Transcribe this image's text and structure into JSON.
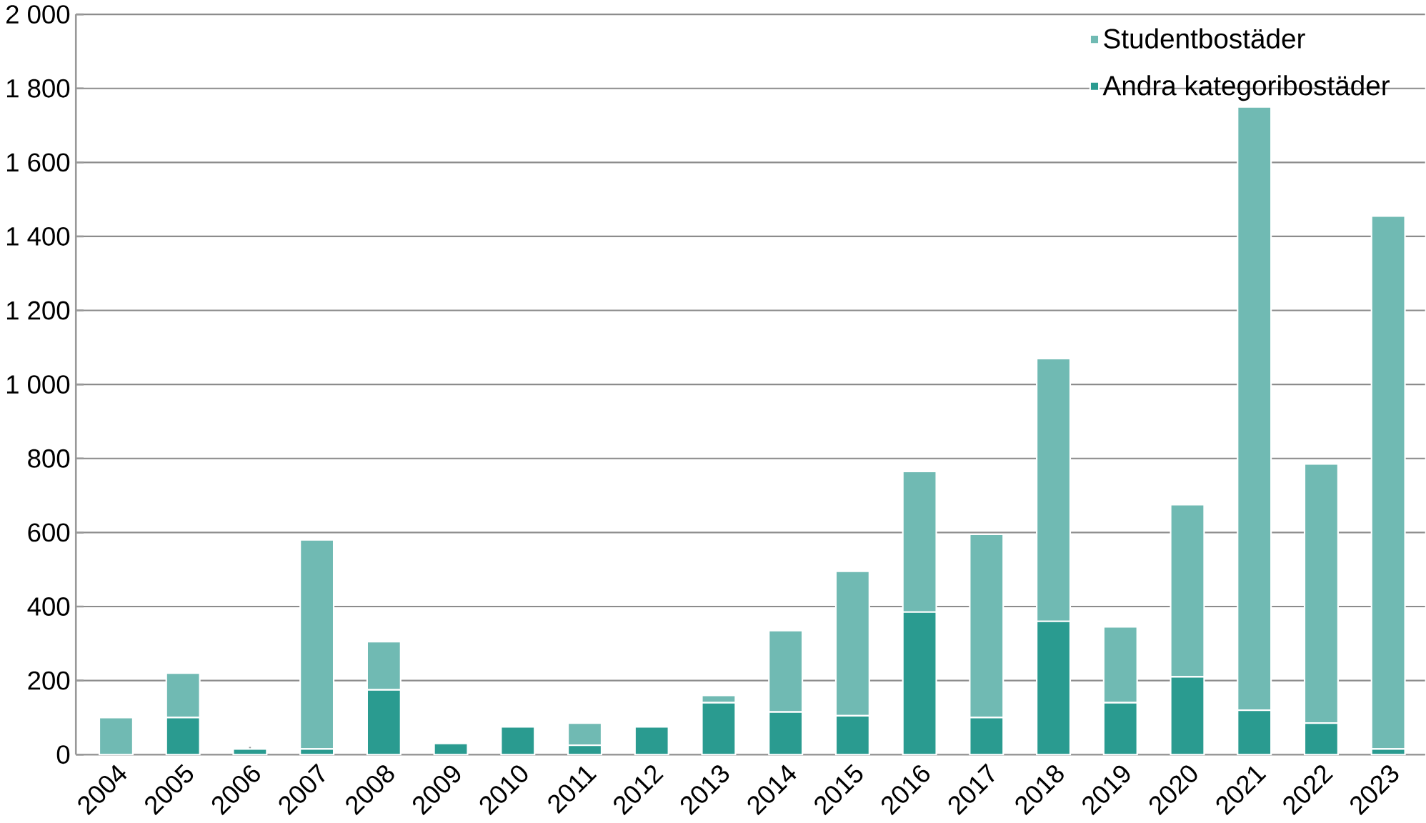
{
  "chart_data": {
    "type": "bar",
    "stacked": true,
    "categories": [
      "2004",
      "2005",
      "2006",
      "2007",
      "2008",
      "2009",
      "2010",
      "2011",
      "2012",
      "2013",
      "2014",
      "2015",
      "2016",
      "2017",
      "2018",
      "2019",
      "2020",
      "2021",
      "2022",
      "2023"
    ],
    "series": [
      {
        "name": "Andra kategoribostäder",
        "color": "#2a9b90",
        "values": [
          0,
          100,
          15,
          15,
          175,
          30,
          75,
          25,
          75,
          140,
          115,
          105,
          385,
          100,
          360,
          140,
          210,
          120,
          85,
          15
        ]
      },
      {
        "name": "Studentbostäder",
        "color": "#70bab3",
        "values": [
          100,
          120,
          0,
          565,
          130,
          0,
          0,
          60,
          0,
          20,
          220,
          390,
          380,
          495,
          710,
          205,
          465,
          1630,
          700,
          1440
        ]
      }
    ],
    "ylim": [
      0,
      2000
    ],
    "yticks": [
      0,
      200,
      400,
      600,
      800,
      {
        "value": 1000,
        "label": "1 000"
      },
      {
        "value": 1200,
        "label": "1 200"
      },
      {
        "value": 1400,
        "label": "1 400"
      },
      {
        "value": 1600,
        "label": "1 600"
      },
      {
        "value": 1800,
        "label": "1 800"
      },
      {
        "value": 2000,
        "label": "2 000"
      }
    ],
    "grid": "y",
    "legend": "top right"
  }
}
